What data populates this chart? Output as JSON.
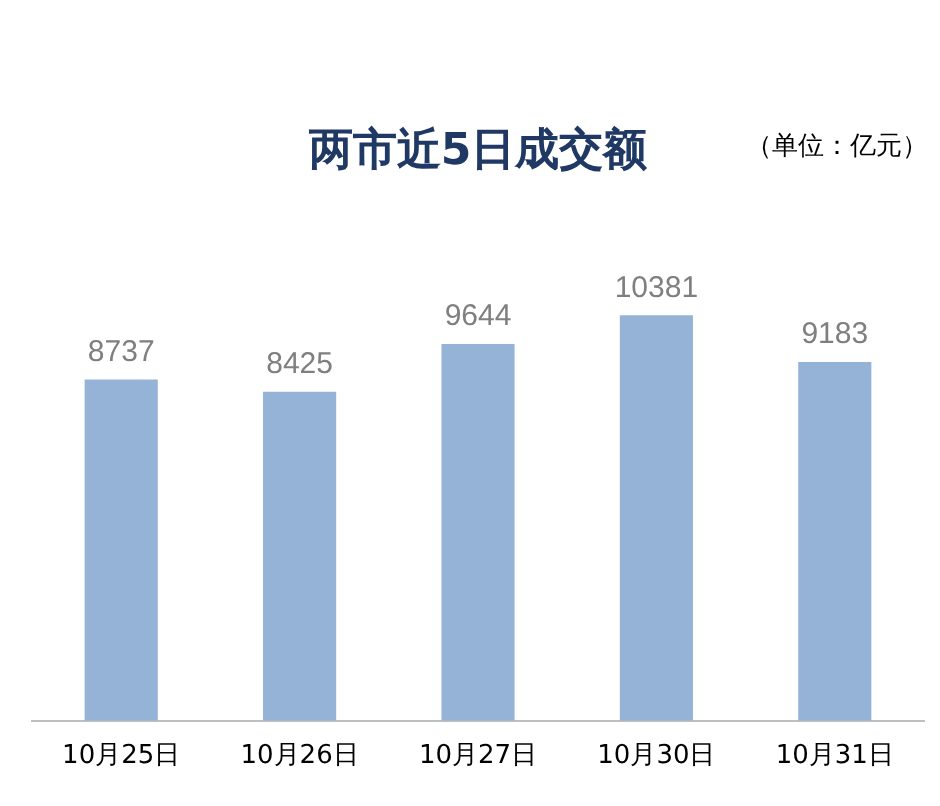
{
  "chart_data": {
    "type": "bar",
    "title": "两市近5日成交额",
    "subtitle": "（单位：亿元）",
    "categories": [
      "10月25日",
      "10月26日",
      "10月27日",
      "10月30日",
      "10月31日"
    ],
    "values": [
      8737,
      8425,
      9644,
      10381,
      9183
    ],
    "color": "#95b3d7",
    "data_labels": true,
    "grid": false,
    "legend": false
  }
}
